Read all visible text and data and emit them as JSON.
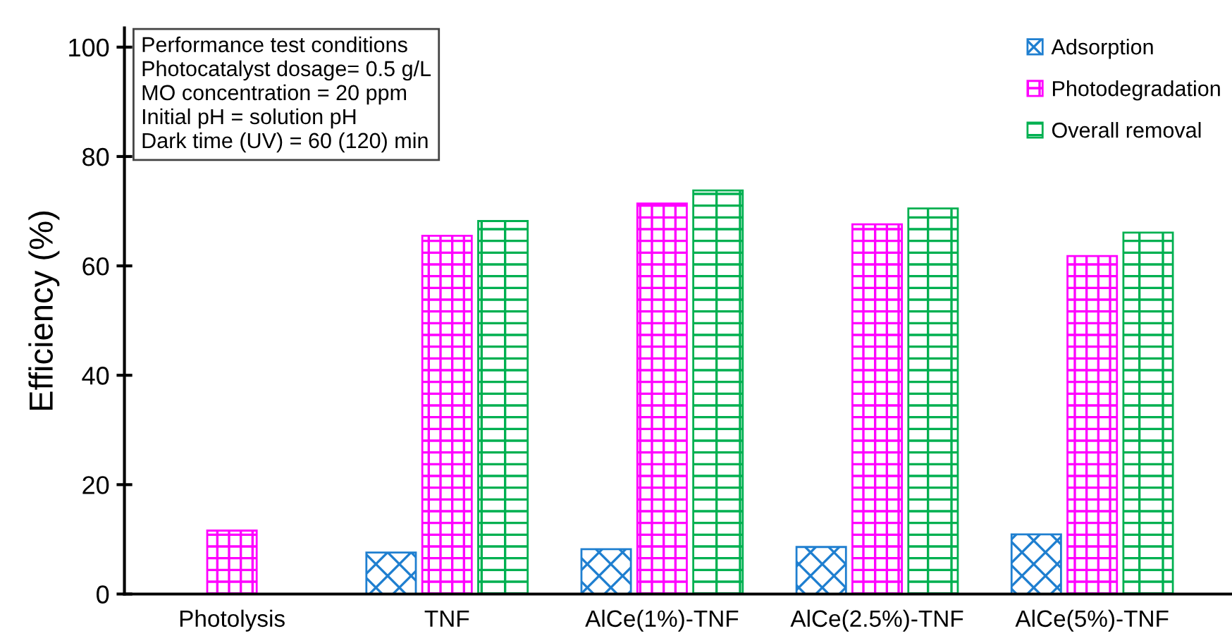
{
  "chart_data": {
    "type": "bar",
    "ylabel": "Efficiency (%)",
    "categories": [
      "Photolysis",
      "TNF",
      "AlCe(1%)-TNF",
      "AlCe(2.5%)-TNF",
      "AlCe(5%)-TNF"
    ],
    "series": [
      {
        "name": "Adsorption",
        "color": "#1f7fd0",
        "values": [
          null,
          7.6,
          8.2,
          8.6,
          10.9
        ]
      },
      {
        "name": "Photodegradation",
        "color": "#ff00ff",
        "values": [
          11.6,
          65.5,
          71.4,
          67.6,
          61.8
        ]
      },
      {
        "name": "Overall removal",
        "color": "#00b050",
        "values": [
          null,
          68.2,
          73.8,
          70.5,
          66.1
        ]
      }
    ],
    "ylim": [
      0,
      103.5
    ],
    "yticks": [
      0,
      20,
      40,
      60,
      80,
      100
    ],
    "grid": false,
    "legend": "top right",
    "annotations": [
      "Performance test conditions",
      "Photocatalyst dosage= 0.5 g/L",
      "MO concentration = 20 ppm",
      "Initial pH = solution pH",
      "Dark time (UV) = 60 (120) min"
    ]
  }
}
